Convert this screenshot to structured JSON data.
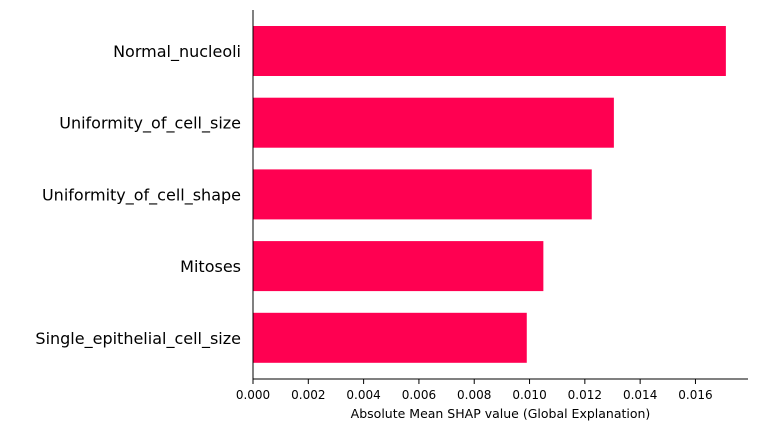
{
  "chart_data": {
    "type": "bar",
    "orientation": "horizontal",
    "categories": [
      "Normal_nucleoli",
      "Uniformity_of_cell_size",
      "Uniformity_of_cell_shape",
      "Mitoses",
      "Single_epithelial_cell_size"
    ],
    "values": [
      0.0171,
      0.01305,
      0.01225,
      0.0105,
      0.0099
    ],
    "xlabel": "Absolute Mean SHAP value (Global Explanation)",
    "ylabel": "",
    "xlim": [
      0,
      0.0179
    ],
    "xticks": [
      0.0,
      0.002,
      0.004,
      0.006,
      0.008,
      0.01,
      0.012,
      0.014,
      0.016
    ],
    "xtick_labels": [
      "0.000",
      "0.002",
      "0.004",
      "0.006",
      "0.008",
      "0.010",
      "0.012",
      "0.014",
      "0.016"
    ],
    "bar_color": "#ff0051",
    "grid": false,
    "legend": "none"
  }
}
